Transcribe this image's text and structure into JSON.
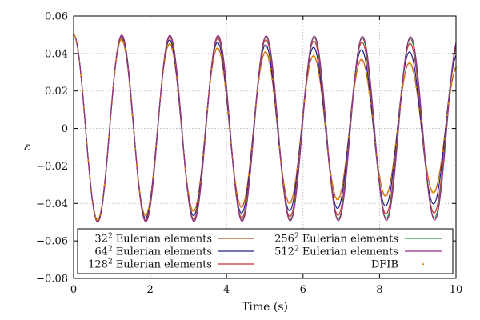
{
  "chart_data": {
    "type": "line",
    "xlabel": "Time (s)",
    "ylabel": "ε",
    "xlim": [
      0,
      10
    ],
    "ylim": [
      -0.08,
      0.06
    ],
    "xticks": [
      0,
      2,
      4,
      6,
      8,
      10
    ],
    "xtick_labels": [
      "0",
      "2",
      "4",
      "6",
      "8",
      "10"
    ],
    "yticks": [
      0.06,
      0.04,
      0.02,
      0,
      -0.02,
      -0.04,
      -0.06,
      -0.08
    ],
    "ytick_labels": [
      "0.06",
      "0.04",
      "0.02",
      "0",
      "−0.02",
      "−0.04",
      "−0.06",
      "−0.08"
    ],
    "grid": true,
    "legend_position": "bottom",
    "period_s": 1.255,
    "initial_value": 0.05,
    "series": [
      {
        "name": "32² Eulerian elements",
        "label_base": "32",
        "label_rest": " Eulerian elements",
        "color": "#b5541b",
        "style": "line",
        "amplitude_decay_rate": 0.0405,
        "period_s": 1.255
      },
      {
        "name": "64² Eulerian elements",
        "label_base": "64",
        "label_rest": " Eulerian elements",
        "color": "#1d1d8f",
        "style": "line",
        "amplitude_decay_rate": 0.023,
        "period_s": 1.255
      },
      {
        "name": "128² Eulerian elements",
        "label_base": "128",
        "label_rest": " Eulerian elements",
        "color": "#c8303f",
        "style": "line",
        "amplitude_decay_rate": 0.011,
        "period_s": 1.257
      },
      {
        "name": "256² Eulerian elements",
        "label_base": "256",
        "label_rest": " Eulerian elements",
        "color": "#2e9a2e",
        "style": "line",
        "amplitude_decay_rate": 0.005,
        "period_s": 1.258
      },
      {
        "name": "512² Eulerian elements",
        "label_base": "512",
        "label_rest": " Eulerian elements",
        "color": "#9b2a8e",
        "style": "line",
        "amplitude_decay_rate": 0.0025,
        "period_s": 1.259
      },
      {
        "name": "DFIB",
        "label_base": "DFIB",
        "label_rest": "",
        "color": "#e08a00",
        "style": "markers",
        "amplitude_decay_rate": 0.0405,
        "period_s": 1.255
      }
    ]
  }
}
